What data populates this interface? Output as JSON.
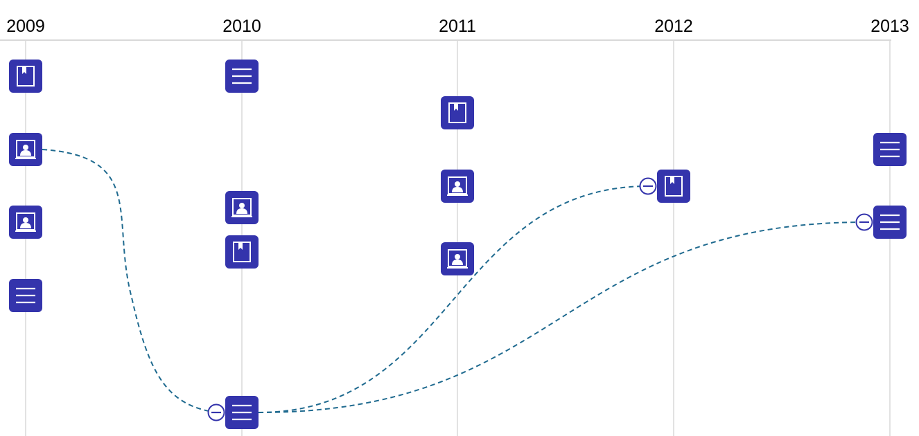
{
  "timeline": {
    "years": [
      "2009",
      "2010",
      "2011",
      "2012",
      "2013"
    ]
  },
  "colors": {
    "node_fill": "#3434AC",
    "node_icon": "#ffffff",
    "link_stroke": "#1F6A8F",
    "gridline": "#D9D9D9",
    "axis_line": "#D9D9D9",
    "collapse_stroke": "#3434AC",
    "collapse_fill": "#ffffff"
  },
  "nodes": [
    {
      "id": "n2009-1",
      "year": "2009",
      "icon": "book-icon",
      "order": 1
    },
    {
      "id": "n2009-2",
      "year": "2009",
      "icon": "person-card-icon",
      "order": 2
    },
    {
      "id": "n2009-3",
      "year": "2009",
      "icon": "person-card-icon",
      "order": 3
    },
    {
      "id": "n2009-4",
      "year": "2009",
      "icon": "list-icon",
      "order": 4
    },
    {
      "id": "n2010-1",
      "year": "2010",
      "icon": "list-icon",
      "order": 1
    },
    {
      "id": "n2010-2",
      "year": "2010",
      "icon": "person-card-icon",
      "order": 2
    },
    {
      "id": "n2010-3",
      "year": "2010",
      "icon": "book-icon",
      "order": 3
    },
    {
      "id": "n2010-4",
      "year": "2010",
      "icon": "list-icon",
      "order": 4,
      "collapsible": true
    },
    {
      "id": "n2011-1",
      "year": "2011",
      "icon": "book-icon",
      "order": 1
    },
    {
      "id": "n2011-2",
      "year": "2011",
      "icon": "person-card-icon",
      "order": 2
    },
    {
      "id": "n2011-3",
      "year": "2011",
      "icon": "person-card-icon",
      "order": 3
    },
    {
      "id": "n2012-1",
      "year": "2012",
      "icon": "book-icon",
      "order": 1,
      "collapsible": true
    },
    {
      "id": "n2013-1",
      "year": "2013",
      "icon": "list-icon",
      "order": 1
    },
    {
      "id": "n2013-2",
      "year": "2013",
      "icon": "list-icon",
      "order": 2,
      "collapsible": true
    }
  ],
  "links": [
    {
      "from": "n2009-2",
      "to": "n2010-4"
    },
    {
      "from": "n2010-4",
      "to": "n2012-1"
    },
    {
      "from": "n2010-4",
      "to": "n2013-2"
    }
  ]
}
